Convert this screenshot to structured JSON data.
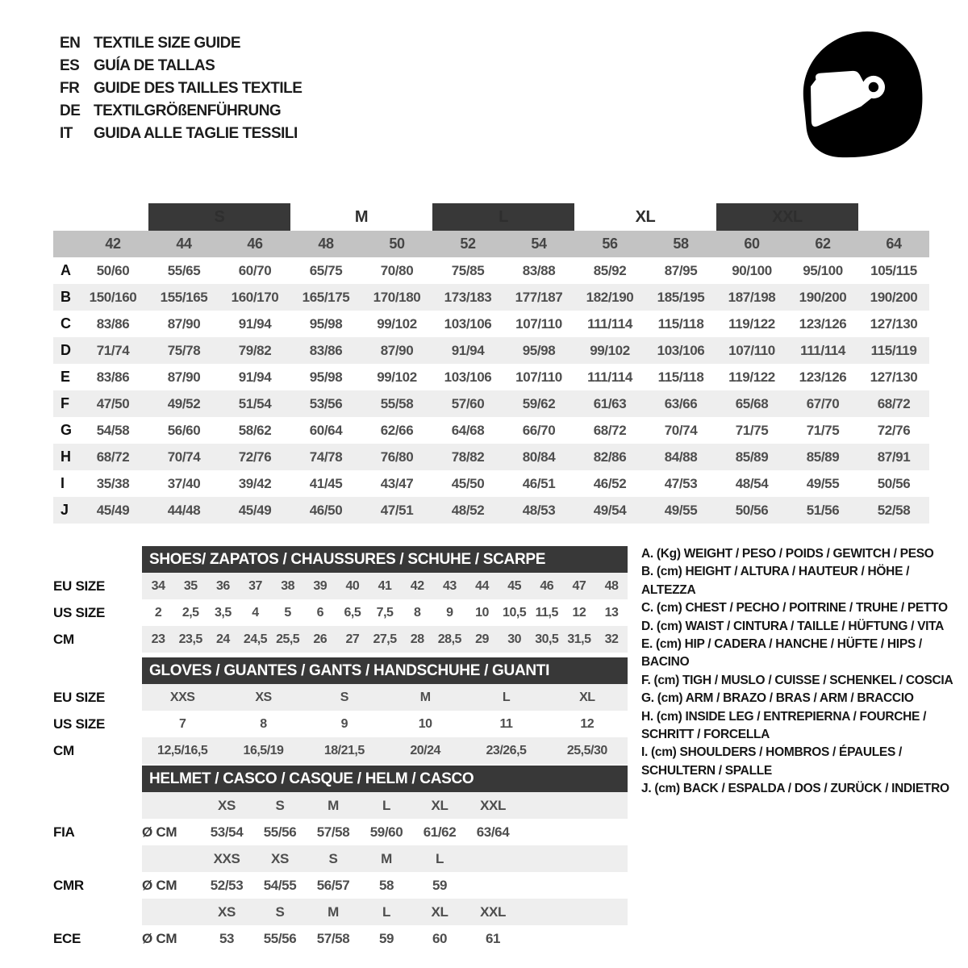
{
  "colors": {
    "dark_bar": "#383838",
    "numbers_row": "#c3c3c3",
    "stripe": "#eeeeee",
    "text": "#4e4e4e"
  },
  "header": {
    "languages": [
      {
        "code": "EN",
        "title": "TEXTILE SIZE GUIDE"
      },
      {
        "code": "ES",
        "title": "GUÍA DE TALLAS"
      },
      {
        "code": "FR",
        "title": "GUIDE DES TAILLES TEXTILE"
      },
      {
        "code": "DE",
        "title": "TEXTILGRÖßENFÜHRUNG"
      },
      {
        "code": "IT",
        "title": "GUIDA ALLE TAGLIE TESSILI"
      }
    ],
    "icon": "racing-helmet"
  },
  "main_table": {
    "size_groups": [
      {
        "label": "S",
        "dark": true,
        "span": 2
      },
      {
        "label": "M",
        "dark": false,
        "span": 2
      },
      {
        "label": "L",
        "dark": true,
        "span": 2
      },
      {
        "label": "XL",
        "dark": false,
        "span": 2
      },
      {
        "label": "XXL",
        "dark": true,
        "span": 2
      }
    ],
    "columns": [
      "42",
      "44",
      "46",
      "48",
      "50",
      "52",
      "54",
      "56",
      "58",
      "60",
      "62",
      "64"
    ],
    "rows": [
      {
        "label": "A",
        "values": [
          "50/60",
          "55/65",
          "60/70",
          "65/75",
          "70/80",
          "75/85",
          "83/88",
          "85/92",
          "87/95",
          "90/100",
          "95/100",
          "105/115"
        ]
      },
      {
        "label": "B",
        "values": [
          "150/160",
          "155/165",
          "160/170",
          "165/175",
          "170/180",
          "173/183",
          "177/187",
          "182/190",
          "185/195",
          "187/198",
          "190/200",
          "190/200"
        ]
      },
      {
        "label": "C",
        "values": [
          "83/86",
          "87/90",
          "91/94",
          "95/98",
          "99/102",
          "103/106",
          "107/110",
          "111/114",
          "115/118",
          "119/122",
          "123/126",
          "127/130"
        ]
      },
      {
        "label": "D",
        "values": [
          "71/74",
          "75/78",
          "79/82",
          "83/86",
          "87/90",
          "91/94",
          "95/98",
          "99/102",
          "103/106",
          "107/110",
          "111/114",
          "115/119"
        ]
      },
      {
        "label": "E",
        "values": [
          "83/86",
          "87/90",
          "91/94",
          "95/98",
          "99/102",
          "103/106",
          "107/110",
          "111/114",
          "115/118",
          "119/122",
          "123/126",
          "127/130"
        ]
      },
      {
        "label": "F",
        "values": [
          "47/50",
          "49/52",
          "51/54",
          "53/56",
          "55/58",
          "57/60",
          "59/62",
          "61/63",
          "63/66",
          "65/68",
          "67/70",
          "68/72"
        ]
      },
      {
        "label": "G",
        "values": [
          "54/58",
          "56/60",
          "58/62",
          "60/64",
          "62/66",
          "64/68",
          "66/70",
          "68/72",
          "70/74",
          "71/75",
          "71/75",
          "72/76"
        ]
      },
      {
        "label": "H",
        "values": [
          "68/72",
          "70/74",
          "72/76",
          "74/78",
          "76/80",
          "78/82",
          "80/84",
          "82/86",
          "84/88",
          "85/89",
          "85/89",
          "87/91"
        ]
      },
      {
        "label": "I",
        "values": [
          "35/38",
          "37/40",
          "39/42",
          "41/45",
          "43/47",
          "45/50",
          "46/51",
          "46/52",
          "47/53",
          "48/54",
          "49/55",
          "50/56"
        ]
      },
      {
        "label": "J",
        "values": [
          "45/49",
          "44/48",
          "45/49",
          "46/50",
          "47/51",
          "48/52",
          "48/53",
          "49/54",
          "49/55",
          "50/56",
          "51/56",
          "52/58"
        ]
      }
    ]
  },
  "shoes": {
    "title": "SHOES/ ZAPATOS / CHAUSSURES / SCHUHE / SCARPE",
    "rows": [
      {
        "label": "EU SIZE",
        "values": [
          "34",
          "35",
          "36",
          "37",
          "38",
          "39",
          "40",
          "41",
          "42",
          "43",
          "44",
          "45",
          "46",
          "47",
          "48"
        ]
      },
      {
        "label": "US SIZE",
        "values": [
          "2",
          "2,5",
          "3,5",
          "4",
          "5",
          "6",
          "6,5",
          "7,5",
          "8",
          "9",
          "10",
          "10,5",
          "11,5",
          "12",
          "13"
        ]
      },
      {
        "label": "CM",
        "values": [
          "23",
          "23,5",
          "24",
          "24,5",
          "25,5",
          "26",
          "27",
          "27,5",
          "28",
          "28,5",
          "29",
          "30",
          "30,5",
          "31,5",
          "32"
        ]
      }
    ]
  },
  "gloves": {
    "title": "GLOVES / GUANTES / GANTS / HANDSCHUHE / GUANTI",
    "rows": [
      {
        "label": "EU SIZE",
        "values": [
          "XXS",
          "XS",
          "S",
          "M",
          "L",
          "XL"
        ]
      },
      {
        "label": "US SIZE",
        "values": [
          "7",
          "8",
          "9",
          "10",
          "11",
          "12"
        ]
      },
      {
        "label": "CM",
        "values": [
          "12,5/16,5",
          "16,5/19",
          "18/21,5",
          "20/24",
          "23/26,5",
          "25,5/30"
        ]
      }
    ]
  },
  "helmet": {
    "title": "HELMET / CASCO / CASQUE / HELM / CASCO",
    "sections": [
      {
        "label": "FIA",
        "unit": "Ø CM",
        "sizes": [
          "XS",
          "S",
          "M",
          "L",
          "XL",
          "XXL"
        ],
        "values": [
          "53/54",
          "55/56",
          "57/58",
          "59/60",
          "61/62",
          "63/64"
        ]
      },
      {
        "label": "CMR",
        "unit": "Ø CM",
        "sizes": [
          "XXS",
          "XS",
          "S",
          "M",
          "L",
          ""
        ],
        "values": [
          "52/53",
          "54/55",
          "56/57",
          "58",
          "59",
          ""
        ]
      },
      {
        "label": "ECE",
        "unit": "Ø CM",
        "sizes": [
          "XS",
          "S",
          "M",
          "L",
          "XL",
          "XXL"
        ],
        "values": [
          "53",
          "55/56",
          "57/58",
          "59",
          "60",
          "61"
        ]
      }
    ]
  },
  "legend": {
    "items": [
      {
        "key": "A.",
        "unit": "(Kg)",
        "label": "WEIGHT / PESO / POIDS / GEWITCH / PESO"
      },
      {
        "key": "B.",
        "unit": "(cm)",
        "label": "HEIGHT / ALTURA / HAUTEUR / HÖHE / ALTEZZA"
      },
      {
        "key": "C.",
        "unit": "(cm)",
        "label": "CHEST / PECHO / POITRINE / TRUHE / PETTO"
      },
      {
        "key": "D.",
        "unit": "(cm)",
        "label": "WAIST / CINTURA / TAILLE / HÜFTUNG / VITA"
      },
      {
        "key": "E.",
        "unit": "(cm)",
        "label": "HIP / CADERA / HANCHE / HÜFTE / HIPS / BACINO"
      },
      {
        "key": "F.",
        "unit": "(cm)",
        "label": "TIGH / MUSLO / CUISSE / SCHENKEL / COSCIA"
      },
      {
        "key": "G.",
        "unit": "(cm)",
        "label": "ARM / BRAZO / BRAS / ARM / BRACCIO"
      },
      {
        "key": "H.",
        "unit": "(cm)",
        "label": "INSIDE LEG / ENTREPIERNA / FOURCHE / SCHRITT / FORCELLA"
      },
      {
        "key": "I.",
        "unit": "(cm)",
        "label": "SHOULDERS / HOMBROS / ÉPAULES / SCHULTERN / SPALLE"
      },
      {
        "key": "J.",
        "unit": "(cm)",
        "label": "BACK / ESPALDA / DOS / ZURÜCK / INDIETRO"
      }
    ]
  }
}
